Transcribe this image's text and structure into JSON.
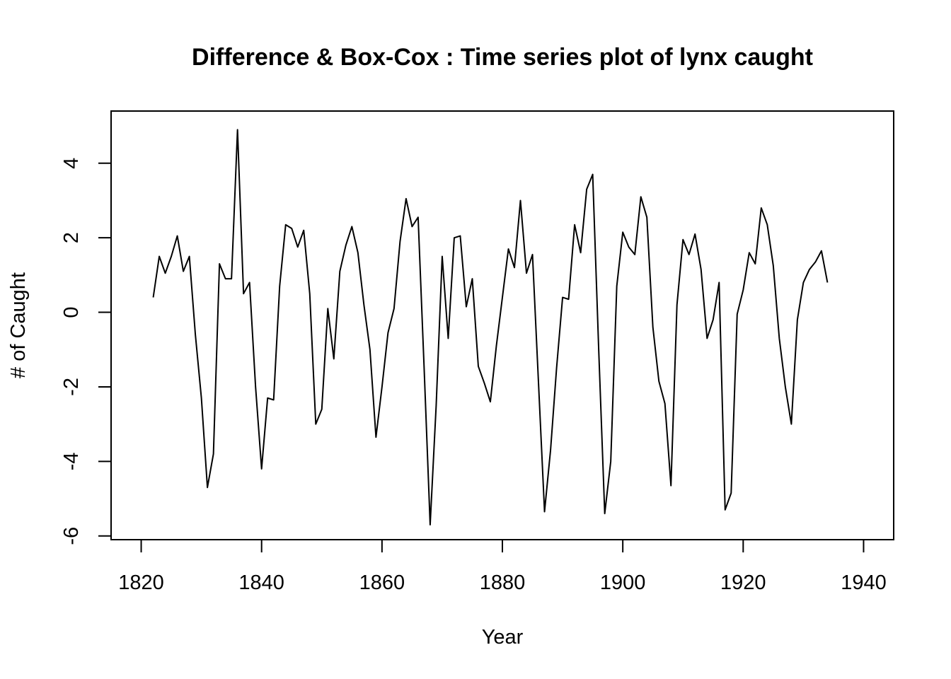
{
  "chart_data": {
    "type": "line",
    "title": "Difference & Box-Cox : Time series plot of lynx caught",
    "xlabel": "Year",
    "ylabel": "# of Caught",
    "xlim": [
      1815,
      1945
    ],
    "ylim": [
      -6.1,
      5.4
    ],
    "xticks": [
      1820,
      1840,
      1860,
      1880,
      1900,
      1920,
      1940
    ],
    "yticks": [
      -6,
      -4,
      -2,
      0,
      2,
      4
    ],
    "grid": false,
    "legend": "none",
    "line_color": "#000000",
    "series": [
      {
        "x": [
          1822,
          1823,
          1824,
          1825,
          1826,
          1827,
          1828,
          1829,
          1830,
          1831,
          1832,
          1833,
          1834,
          1835,
          1836,
          1837,
          1838,
          1839,
          1840,
          1841,
          1842,
          1843,
          1844,
          1845,
          1846,
          1847,
          1848,
          1849,
          1850,
          1851,
          1852,
          1853,
          1854,
          1855,
          1856,
          1857,
          1858,
          1859,
          1860,
          1861,
          1862,
          1863,
          1864,
          1865,
          1866,
          1867,
          1868,
          1869,
          1870,
          1871,
          1872,
          1873,
          1874,
          1875,
          1876,
          1877,
          1878,
          1879,
          1880,
          1881,
          1882,
          1883,
          1884,
          1885,
          1886,
          1887,
          1888,
          1889,
          1890,
          1891,
          1892,
          1893,
          1894,
          1895,
          1896,
          1897,
          1898,
          1899,
          1900,
          1901,
          1902,
          1903,
          1904,
          1905,
          1906,
          1907,
          1908,
          1909,
          1910,
          1911,
          1912,
          1913,
          1914,
          1915,
          1916,
          1917,
          1918,
          1919,
          1920,
          1921,
          1922,
          1923,
          1924,
          1925,
          1926,
          1927,
          1928,
          1929,
          1930,
          1931,
          1932,
          1933,
          1934
        ],
        "values": [
          0.4,
          1.5,
          1.05,
          1.5,
          2.05,
          1.1,
          1.5,
          -0.6,
          -2.3,
          -4.7,
          -3.8,
          1.3,
          0.9,
          0.9,
          4.9,
          0.5,
          0.8,
          -2.0,
          -4.2,
          -2.3,
          -2.35,
          0.7,
          2.35,
          2.25,
          1.75,
          2.2,
          0.5,
          -3.0,
          -2.6,
          0.1,
          -1.25,
          1.1,
          1.8,
          2.3,
          1.6,
          0.2,
          -1.0,
          -3.35,
          -2.0,
          -0.55,
          0.1,
          1.9,
          3.05,
          2.3,
          2.55,
          -1.5,
          -5.7,
          -2.5,
          1.5,
          -0.7,
          2.0,
          2.05,
          0.15,
          0.9,
          -1.45,
          -1.9,
          -2.4,
          -0.9,
          0.4,
          1.7,
          1.2,
          3.0,
          1.05,
          1.55,
          -1.9,
          -5.35,
          -3.7,
          -1.5,
          0.4,
          0.35,
          2.35,
          1.6,
          3.3,
          3.7,
          -1.0,
          -5.4,
          -4.0,
          0.7,
          2.15,
          1.75,
          1.55,
          3.1,
          2.55,
          -0.4,
          -1.85,
          -2.45,
          -4.65,
          0.2,
          1.95,
          1.55,
          2.1,
          1.15,
          -0.7,
          -0.2,
          0.8,
          -5.3,
          -4.85,
          -0.05,
          0.6,
          1.6,
          1.3,
          2.8,
          2.35,
          1.25,
          -0.7,
          -2.0,
          -3.0,
          -0.2,
          0.8,
          1.15,
          1.35,
          1.65,
          0.8
        ]
      }
    ]
  }
}
